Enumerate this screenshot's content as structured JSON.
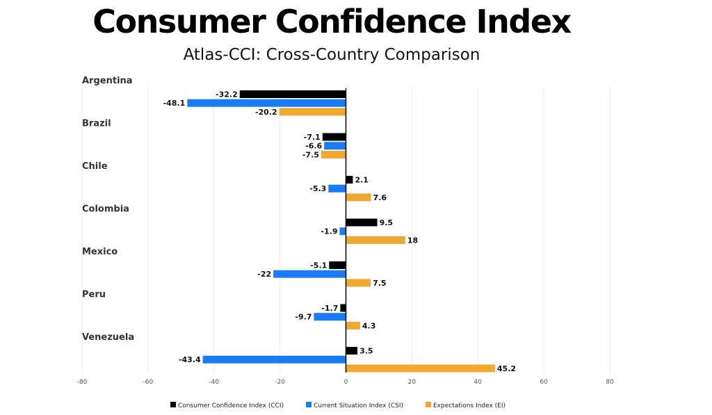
{
  "chart_data": {
    "type": "bar",
    "orientation": "horizontal",
    "title": "Consumer Confidence Index",
    "subtitle": "Atlas-CCI: Cross-Country Comparison",
    "categories": [
      "Argentina",
      "Brazil",
      "Chile",
      "Colombia",
      "Mexico",
      "Peru",
      "Venezuela"
    ],
    "series": [
      {
        "name": "Consumer Confidence Index (CCI)",
        "color": "#000000",
        "values": [
          -32.2,
          -7.1,
          2.1,
          9.5,
          -5.1,
          -1.7,
          3.5
        ]
      },
      {
        "name": "Current Situation Index (CSI)",
        "color": "#1a7cf5",
        "values": [
          -48.1,
          -6.6,
          -5.3,
          -1.9,
          -22,
          -9.7,
          -43.4
        ]
      },
      {
        "name": "Expectations Index (EI)",
        "color": "#f0a830",
        "values": [
          -20.2,
          -7.5,
          7.6,
          18,
          7.5,
          4.3,
          45.2
        ]
      }
    ],
    "xlim": [
      -80,
      80
    ],
    "xticks": [
      -80,
      -60,
      -40,
      -20,
      0,
      20,
      40,
      60,
      80
    ],
    "grid": true,
    "legend_position": "bottom"
  }
}
